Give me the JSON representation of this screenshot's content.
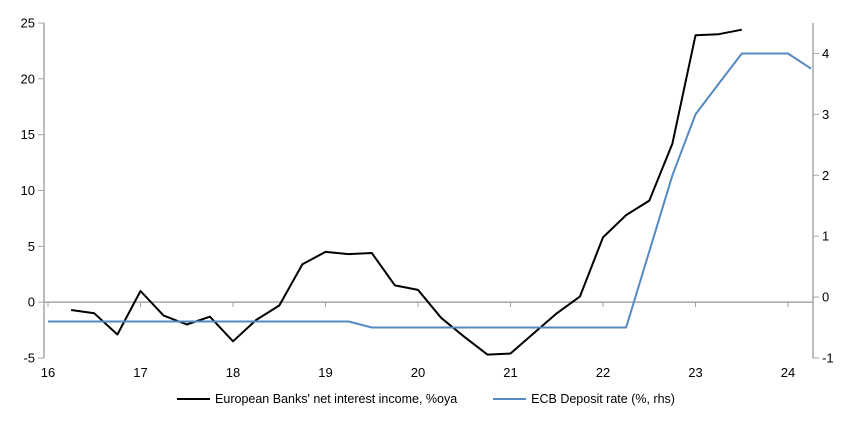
{
  "colors": {
    "background": "#ffffff",
    "axis": "#a6a6a6",
    "text": "#000000",
    "series_black": "#000000",
    "series_blue": "#5589c2"
  },
  "chart_data": {
    "type": "line",
    "title": "",
    "legend_position": "bottom",
    "grid": "zero-line-only",
    "x_axis": {
      "min": 16,
      "max": 24.27,
      "ticks": [
        16,
        17,
        18,
        19,
        20,
        21,
        22,
        23,
        24
      ],
      "tick_labels": [
        "16",
        "17",
        "18",
        "19",
        "20",
        "21",
        "22",
        "23",
        "24"
      ]
    },
    "left_axis": {
      "min": -5,
      "max": 25,
      "ticks": [
        25,
        20,
        15,
        10,
        5,
        0,
        -5
      ],
      "tick_labels": [
        "25",
        "20",
        "15",
        "10",
        "5",
        "0",
        "-5"
      ]
    },
    "right_axis": {
      "min": -1,
      "max": 4.5,
      "ticks": [
        4,
        3,
        2,
        1,
        0,
        -1
      ],
      "tick_labels": [
        "4",
        "3",
        "2",
        "1",
        "0",
        "-1"
      ]
    },
    "series": [
      {
        "name": "European Banks' net interest income, %oya",
        "axis": "left",
        "color": "#000000",
        "width": 2,
        "x": [
          16.25,
          16.5,
          16.75,
          17.0,
          17.25,
          17.5,
          17.75,
          18.0,
          18.25,
          18.5,
          18.75,
          19.0,
          19.25,
          19.5,
          19.75,
          20.0,
          20.25,
          20.5,
          20.75,
          21.0,
          21.25,
          21.5,
          21.75,
          22.0,
          22.25,
          22.5,
          22.75,
          23.0,
          23.25,
          23.5
        ],
        "values": [
          -0.7,
          -1.0,
          -2.9,
          1.0,
          -1.2,
          -2.0,
          -1.3,
          -3.5,
          -1.6,
          -0.3,
          3.4,
          4.5,
          4.3,
          4.4,
          1.5,
          1.1,
          -1.4,
          -3.1,
          -4.7,
          -4.6,
          -2.8,
          -1.0,
          0.5,
          5.8,
          7.8,
          9.1,
          14.2,
          23.9,
          24.0,
          24.4
        ]
      },
      {
        "name": "ECB Deposit rate (%, rhs)",
        "axis": "right",
        "color": "#5589c2",
        "width": 2,
        "x": [
          16.0,
          19.25,
          19.5,
          22.25,
          22.5,
          22.75,
          23.0,
          23.25,
          23.5,
          23.75,
          24.0,
          24.25
        ],
        "values": [
          -0.4,
          -0.4,
          -0.5,
          -0.5,
          0.75,
          2.0,
          3.0,
          3.5,
          4.0,
          4.0,
          4.0,
          3.75
        ]
      }
    ]
  }
}
